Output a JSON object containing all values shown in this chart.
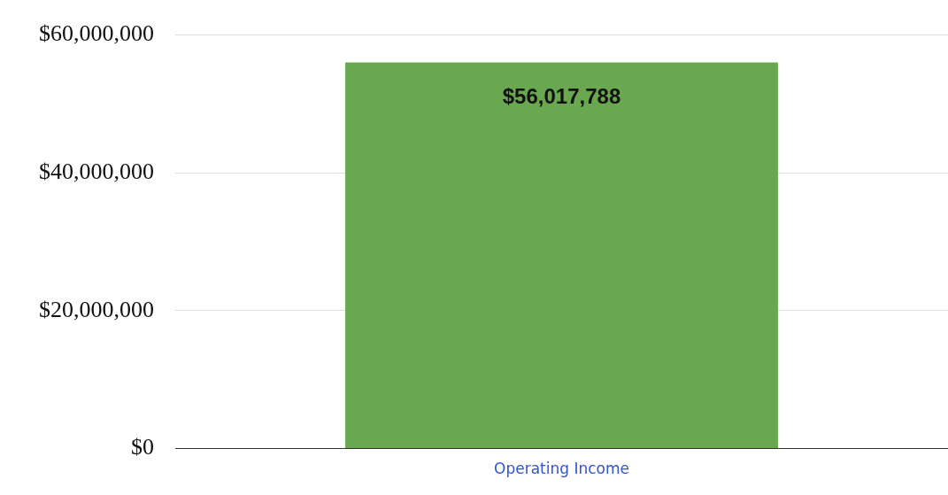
{
  "chart_data": {
    "type": "bar",
    "categories": [
      "Operating Income"
    ],
    "values": [
      56017788
    ],
    "color": "#6aa84f",
    "ylim": [
      0,
      60000000
    ],
    "yticks": [
      {
        "value": 0,
        "label": "$0"
      },
      {
        "value": 20000000,
        "label": "$20,000,000"
      },
      {
        "value": 40000000,
        "label": "$40,000,000"
      },
      {
        "value": 60000000,
        "label": "$60,000,000"
      }
    ],
    "value_labels": [
      "$56,017,788"
    ],
    "grid": "y",
    "legend": false
  }
}
